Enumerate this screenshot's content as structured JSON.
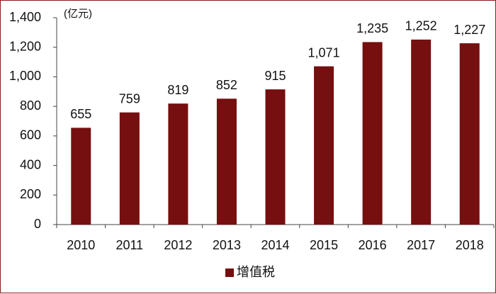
{
  "chart_data": {
    "type": "bar",
    "unit_label": "(亿元)",
    "categories": [
      "2010",
      "2011",
      "2012",
      "2013",
      "2014",
      "2015",
      "2016",
      "2017",
      "2018"
    ],
    "series": [
      {
        "name": "增值税",
        "color": "#760f0f",
        "values": [
          655,
          759,
          819,
          852,
          915,
          1071,
          1235,
          1252,
          1227
        ],
        "value_labels": [
          "655",
          "759",
          "819",
          "852",
          "915",
          "1,071",
          "1,235",
          "1,252",
          "1,227"
        ]
      }
    ],
    "ylim": [
      0,
      1400
    ],
    "yticks": [
      0,
      200,
      400,
      600,
      800,
      {
        "value": 1000,
        "label": "1,000"
      },
      {
        "value": 1200,
        "label": "1,200"
      },
      {
        "value": 1400,
        "label": "1,400"
      }
    ],
    "grid": false,
    "legend": "bottom"
  }
}
